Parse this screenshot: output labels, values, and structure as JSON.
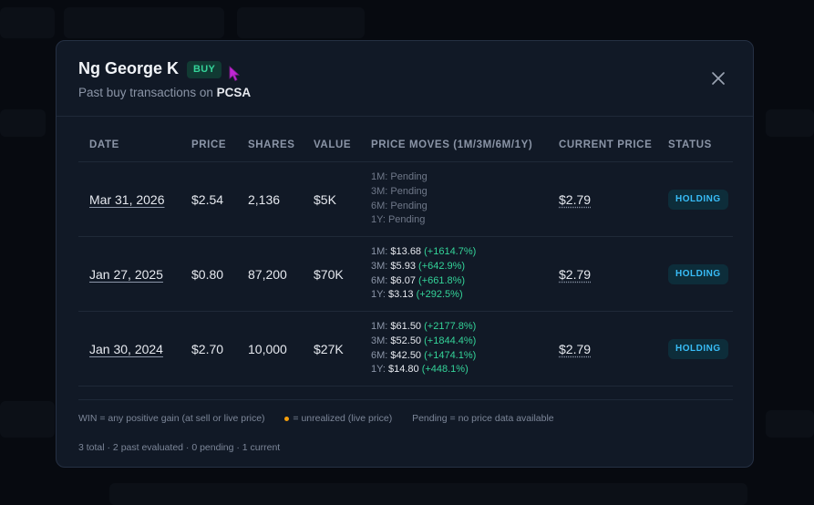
{
  "modal": {
    "name": "Ng George K",
    "badge": "BUY",
    "subtitle_prefix": "Past buy transactions on",
    "ticker": "PCSA"
  },
  "table": {
    "headers": [
      "DATE",
      "PRICE",
      "SHARES",
      "VALUE",
      "PRICE MOVES (1M/3M/6M/1Y)",
      "CURRENT PRICE",
      "STATUS"
    ],
    "rows": [
      {
        "date": "Mar 31, 2026",
        "price": "$2.54",
        "shares": "2,136",
        "value": "$5K",
        "moves": [
          {
            "label": "1M:",
            "text": "Pending"
          },
          {
            "label": "3M:",
            "text": "Pending"
          },
          {
            "label": "6M:",
            "text": "Pending"
          },
          {
            "label": "1Y:",
            "text": "Pending"
          }
        ],
        "current": "$2.79",
        "status": "HOLDING"
      },
      {
        "date": "Jan 27, 2025",
        "price": "$0.80",
        "shares": "87,200",
        "value": "$70K",
        "moves": [
          {
            "label": "1M:",
            "price": "$13.68",
            "pct": "(+1614.7%)"
          },
          {
            "label": "3M:",
            "price": "$5.93",
            "pct": "(+642.9%)"
          },
          {
            "label": "6M:",
            "price": "$6.07",
            "pct": "(+661.8%)"
          },
          {
            "label": "1Y:",
            "price": "$3.13",
            "pct": "(+292.5%)"
          }
        ],
        "current": "$2.79",
        "status": "HOLDING"
      },
      {
        "date": "Jan 30, 2024",
        "price": "$2.70",
        "shares": "10,000",
        "value": "$27K",
        "moves": [
          {
            "label": "1M:",
            "price": "$61.50",
            "pct": "(+2177.8%)"
          },
          {
            "label": "3M:",
            "price": "$52.50",
            "pct": "(+1844.4%)"
          },
          {
            "label": "6M:",
            "price": "$42.50",
            "pct": "(+1474.1%)"
          },
          {
            "label": "1Y:",
            "price": "$14.80",
            "pct": "(+448.1%)"
          }
        ],
        "current": "$2.79",
        "status": "HOLDING"
      }
    ]
  },
  "legend": {
    "win": "WIN = any positive gain (at sell or live price)",
    "unrealized": "= unrealized (live price)",
    "pending": "Pending = no price data available"
  },
  "summary": "3 total · 2 past evaluated · 0 pending · 1 current",
  "icons": {
    "close": "close-icon",
    "cursor": "mouse-cursor-icon"
  },
  "colors": {
    "positive": "#34d399",
    "status": "#38bdf8",
    "unrealized_dot": "#f59e0b"
  }
}
